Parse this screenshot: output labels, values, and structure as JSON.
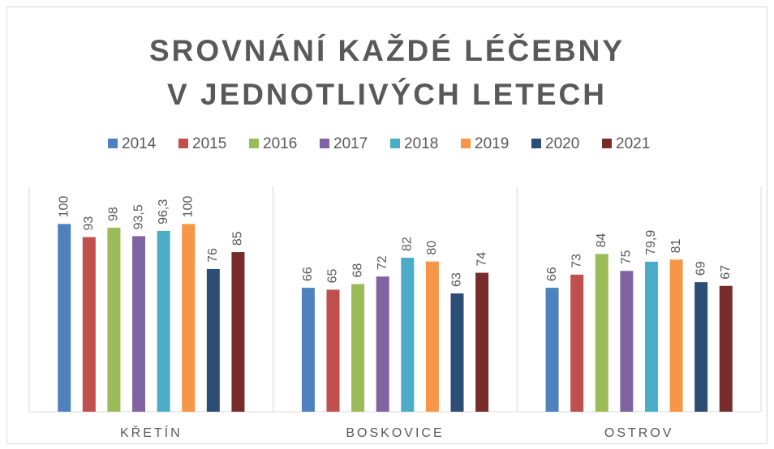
{
  "chart_data": {
    "type": "bar",
    "title": "SROVNÁNÍ KAŽDÉ LÉČEBNY V JEDNOTLIVÝCH LETECH",
    "categories": [
      "KŘETÍN",
      "BOSKOVICE",
      "OSTROV"
    ],
    "series": [
      {
        "name": "2014",
        "color": "#4f81bd",
        "values": [
          100,
          66,
          66
        ]
      },
      {
        "name": "2015",
        "color": "#c0504d",
        "values": [
          93,
          65,
          73
        ]
      },
      {
        "name": "2016",
        "color": "#9bbb59",
        "values": [
          98,
          68,
          84
        ]
      },
      {
        "name": "2017",
        "color": "#8064a2",
        "values": [
          93.5,
          72,
          75
        ],
        "value_labels": [
          "93,5",
          "72",
          "75"
        ]
      },
      {
        "name": "2018",
        "color": "#4bacc6",
        "values": [
          96.3,
          82,
          79.9
        ],
        "value_labels": [
          "96,3",
          "82",
          "79,9"
        ]
      },
      {
        "name": "2019",
        "color": "#f79646",
        "values": [
          100,
          80,
          81
        ]
      },
      {
        "name": "2020",
        "color": "#2c4d75",
        "values": [
          76,
          63,
          69
        ]
      },
      {
        "name": "2021",
        "color": "#772c2a",
        "values": [
          85,
          74,
          67
        ]
      }
    ],
    "ylim": [
      0,
      120
    ],
    "legend": "top"
  }
}
